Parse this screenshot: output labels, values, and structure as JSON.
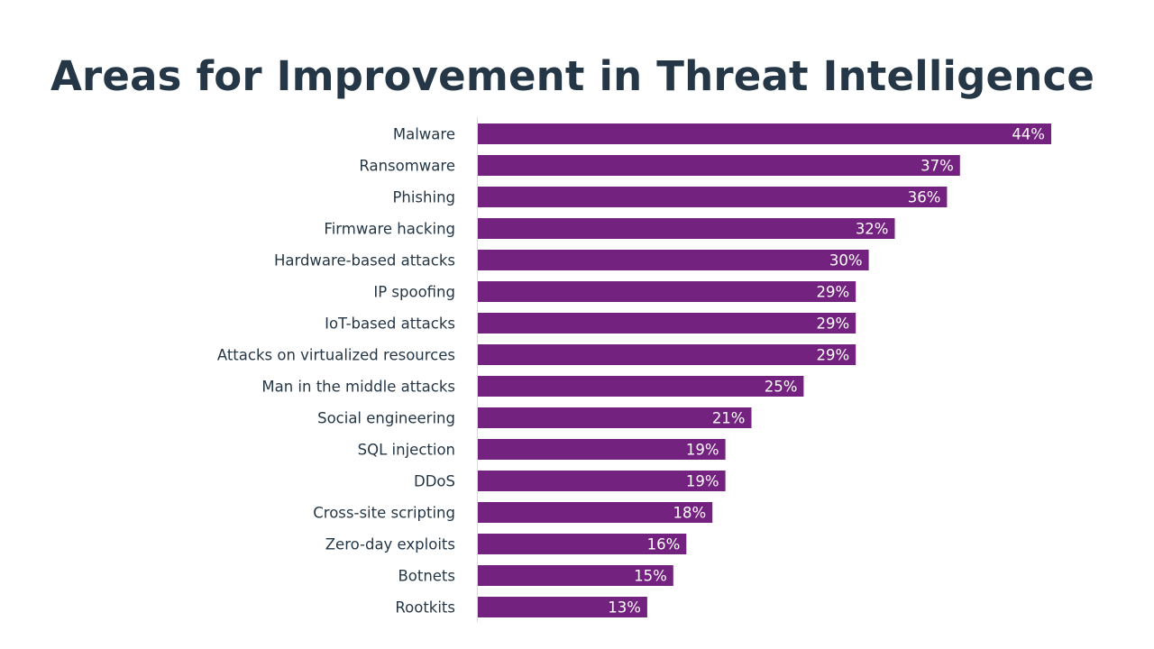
{
  "title": "Areas for Improvement in Threat Intelligence",
  "colors": {
    "bar": "#74227F",
    "title": "#253746",
    "axis": "#D9D9D9",
    "value_label": "#FFFFFF"
  },
  "chart_data": {
    "type": "bar",
    "orientation": "horizontal",
    "title": "Areas for Improvement in Threat Intelligence",
    "categories": [
      "Malware",
      "Ransomware",
      "Phishing",
      "Firmware hacking",
      "Hardware-based attacks",
      "IP spoofing",
      "IoT-based attacks",
      "Attacks on virtualized resources",
      "Man in the middle attacks",
      "Social engineering",
      "SQL injection",
      "DDoS",
      "Cross-site scripting",
      "Zero-day exploits",
      "Botnets",
      "Rootkits"
    ],
    "values": [
      44,
      37,
      36,
      32,
      30,
      29,
      29,
      29,
      25,
      21,
      19,
      19,
      18,
      16,
      15,
      13
    ],
    "value_labels": [
      "44%",
      "37%",
      "36%",
      "32%",
      "30%",
      "29%",
      "29%",
      "29%",
      "25%",
      "21%",
      "19%",
      "19%",
      "18%",
      "16%",
      "15%",
      "13%"
    ],
    "unit": "%",
    "xlim": [
      0,
      44
    ],
    "xlabel": "",
    "ylabel": "",
    "grid": false,
    "legend": "none"
  }
}
